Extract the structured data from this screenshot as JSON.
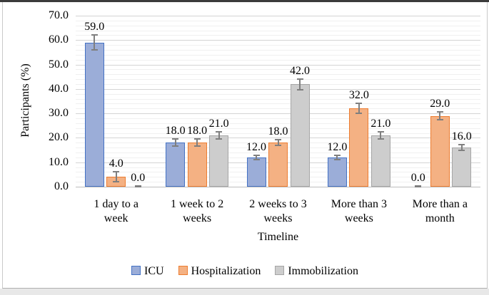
{
  "chart_data": {
    "type": "bar",
    "title": "",
    "xlabel": "Timeline",
    "ylabel": "Participants (%)",
    "categories": [
      "1 day to a\nweek",
      "1 week to 2\nweeks",
      "2 weeks to 3\nweeks",
      "More than 3\nweeks",
      "More than a\nmonth"
    ],
    "series": [
      {
        "name": "ICU",
        "fill_color": "#9badd8",
        "border_color": "#4472c4",
        "values": [
          59.0,
          18.0,
          12.0,
          12.0,
          0.0
        ],
        "errors": [
          3.0,
          1.5,
          0.8,
          0.8,
          0.4
        ]
      },
      {
        "name": "Hospitalization",
        "fill_color": "#f4b183",
        "border_color": "#ed7d31",
        "values": [
          4.0,
          18.0,
          18.0,
          32.0,
          29.0
        ],
        "errors": [
          2.0,
          1.5,
          1.2,
          2.0,
          1.6
        ]
      },
      {
        "name": "Immobilization",
        "fill_color": "#cdcdcd",
        "border_color": "#a6a6a6",
        "values": [
          0.0,
          21.0,
          42.0,
          21.0,
          16.0
        ],
        "errors": [
          0.4,
          1.5,
          2.2,
          1.4,
          1.2
        ]
      }
    ],
    "ylim": [
      0,
      70
    ],
    "y_major_step": 10,
    "y_minor_step": 2,
    "y_tick_labels": [
      "0.0",
      "10.0",
      "20.0",
      "30.0",
      "40.0",
      "50.0",
      "60.0",
      "70.0"
    ],
    "data_label_decimals": 1,
    "grid": "horizontal major+minor",
    "legend_position": "bottom",
    "error_bar_color": "#7f7f7f"
  }
}
